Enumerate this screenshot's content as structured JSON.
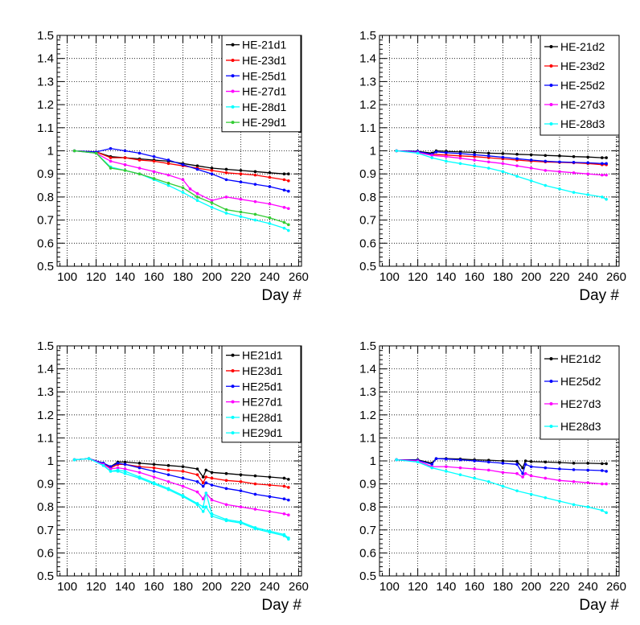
{
  "chart_data": [
    {
      "type": "line",
      "xlabel": "Day #",
      "ylabel": "",
      "xlim": [
        93,
        262
      ],
      "ylim": [
        0.5,
        1.5
      ],
      "xticks": [
        "100",
        "120",
        "140",
        "160",
        "180",
        "200",
        "220",
        "240",
        "260"
      ],
      "yticks": [
        "0.5",
        "0.6",
        "0.7",
        "0.8",
        "0.9",
        "1",
        "1.1",
        "1.2",
        "1.3",
        "1.4",
        "1.5"
      ],
      "grid": true,
      "legend_position": "top-right",
      "series": [
        {
          "name": "HE-21d1",
          "color": "#000000",
          "x": [
            105,
            120,
            130,
            140,
            150,
            160,
            170,
            180,
            190,
            200,
            210,
            220,
            230,
            240,
            250,
            253
          ],
          "y": [
            1.0,
            0.995,
            0.975,
            0.97,
            0.965,
            0.96,
            0.955,
            0.945,
            0.935,
            0.925,
            0.92,
            0.915,
            0.91,
            0.905,
            0.9,
            0.9
          ]
        },
        {
          "name": "HE-23d1",
          "color": "#ff0000",
          "x": [
            105,
            120,
            130,
            140,
            150,
            160,
            170,
            180,
            190,
            200,
            210,
            220,
            230,
            240,
            250,
            253
          ],
          "y": [
            1.0,
            0.995,
            0.97,
            0.97,
            0.96,
            0.955,
            0.945,
            0.935,
            0.925,
            0.915,
            0.905,
            0.9,
            0.895,
            0.885,
            0.875,
            0.87
          ]
        },
        {
          "name": "HE-25d1",
          "color": "#0000ff",
          "x": [
            105,
            120,
            130,
            140,
            150,
            160,
            170,
            180,
            190,
            200,
            210,
            220,
            230,
            240,
            250,
            253
          ],
          "y": [
            1.0,
            0.995,
            1.01,
            1.0,
            0.99,
            0.975,
            0.96,
            0.94,
            0.92,
            0.9,
            0.875,
            0.865,
            0.855,
            0.845,
            0.83,
            0.825
          ]
        },
        {
          "name": "HE-27d1",
          "color": "#ff00ff",
          "x": [
            105,
            120,
            130,
            140,
            150,
            160,
            170,
            180,
            185,
            190,
            200,
            210,
            220,
            230,
            240,
            250,
            253
          ],
          "y": [
            1.0,
            0.99,
            0.955,
            0.94,
            0.925,
            0.91,
            0.895,
            0.875,
            0.835,
            0.815,
            0.785,
            0.8,
            0.79,
            0.78,
            0.77,
            0.755,
            0.75
          ]
        },
        {
          "name": "HE-28d1",
          "color": "#00ffff",
          "x": [
            105,
            120,
            130,
            140,
            150,
            160,
            170,
            180,
            190,
            200,
            210,
            220,
            230,
            240,
            250,
            253
          ],
          "y": [
            1.0,
            0.99,
            0.93,
            0.915,
            0.9,
            0.875,
            0.85,
            0.82,
            0.785,
            0.755,
            0.73,
            0.715,
            0.7,
            0.685,
            0.665,
            0.655
          ]
        },
        {
          "name": "HE-29d1",
          "color": "#33cc33",
          "x": [
            105,
            120,
            130,
            140,
            150,
            160,
            170,
            180,
            190,
            200,
            210,
            220,
            230,
            240,
            250,
            253
          ],
          "y": [
            1.0,
            0.99,
            0.925,
            0.915,
            0.9,
            0.88,
            0.86,
            0.84,
            0.8,
            0.775,
            0.745,
            0.735,
            0.725,
            0.71,
            0.69,
            0.68
          ]
        }
      ]
    },
    {
      "type": "line",
      "xlabel": "Day #",
      "ylabel": "",
      "xlim": [
        93,
        262
      ],
      "ylim": [
        0.5,
        1.5
      ],
      "xticks": [
        "100",
        "120",
        "140",
        "160",
        "180",
        "200",
        "220",
        "240",
        "260"
      ],
      "yticks": [
        "0.5",
        "0.6",
        "0.7",
        "0.8",
        "0.9",
        "1",
        "1.1",
        "1.2",
        "1.3",
        "1.4",
        "1.5"
      ],
      "grid": true,
      "legend_position": "top-right",
      "series": [
        {
          "name": "HE-21d2",
          "color": "#000000",
          "x": [
            105,
            120,
            130,
            133,
            140,
            150,
            160,
            170,
            180,
            190,
            200,
            210,
            220,
            230,
            240,
            250,
            253
          ],
          "y": [
            1.0,
            0.998,
            0.99,
            1.0,
            0.998,
            0.995,
            0.993,
            0.99,
            0.988,
            0.985,
            0.983,
            0.98,
            0.978,
            0.975,
            0.973,
            0.97,
            0.97
          ]
        },
        {
          "name": "HE-23d2",
          "color": "#ff0000",
          "x": [
            105,
            120,
            130,
            140,
            150,
            160,
            170,
            180,
            190,
            200,
            210,
            220,
            230,
            240,
            250,
            253
          ],
          "y": [
            1.0,
            0.995,
            0.985,
            0.982,
            0.978,
            0.975,
            0.97,
            0.965,
            0.96,
            0.955,
            0.952,
            0.95,
            0.948,
            0.945,
            0.94,
            0.94
          ]
        },
        {
          "name": "HE-25d2",
          "color": "#0000ff",
          "x": [
            105,
            120,
            130,
            133,
            140,
            150,
            160,
            170,
            180,
            190,
            200,
            210,
            220,
            230,
            240,
            250,
            253
          ],
          "y": [
            1.0,
            0.997,
            0.985,
            0.995,
            0.992,
            0.988,
            0.983,
            0.978,
            0.972,
            0.966,
            0.96,
            0.955,
            0.952,
            0.95,
            0.948,
            0.945,
            0.945
          ]
        },
        {
          "name": "HE-27d3",
          "color": "#ff00ff",
          "x": [
            105,
            120,
            130,
            140,
            150,
            160,
            170,
            180,
            190,
            200,
            210,
            220,
            230,
            240,
            250,
            253
          ],
          "y": [
            1.0,
            0.993,
            0.98,
            0.975,
            0.968,
            0.96,
            0.952,
            0.945,
            0.935,
            0.925,
            0.915,
            0.91,
            0.905,
            0.9,
            0.895,
            0.895
          ]
        },
        {
          "name": "HE-28d3",
          "color": "#00ffff",
          "x": [
            105,
            120,
            130,
            140,
            150,
            160,
            170,
            180,
            190,
            200,
            210,
            220,
            230,
            240,
            250,
            253
          ],
          "y": [
            1.0,
            0.99,
            0.97,
            0.955,
            0.945,
            0.935,
            0.925,
            0.91,
            0.89,
            0.87,
            0.85,
            0.835,
            0.82,
            0.81,
            0.8,
            0.79
          ]
        }
      ]
    },
    {
      "type": "line",
      "xlabel": "Day #",
      "ylabel": "",
      "xlim": [
        93,
        262
      ],
      "ylim": [
        0.5,
        1.5
      ],
      "xticks": [
        "100",
        "120",
        "140",
        "160",
        "180",
        "200",
        "220",
        "240",
        "260"
      ],
      "yticks": [
        "0.5",
        "0.6",
        "0.7",
        "0.8",
        "0.9",
        "1",
        "1.1",
        "1.2",
        "1.3",
        "1.4",
        "1.5"
      ],
      "grid": true,
      "legend_position": "top-right",
      "series": [
        {
          "name": "HE21d1",
          "color": "#000000",
          "x": [
            105,
            115,
            125,
            130,
            135,
            140,
            150,
            160,
            170,
            180,
            190,
            194,
            196,
            200,
            210,
            220,
            230,
            240,
            250,
            253
          ],
          "y": [
            1.005,
            1.01,
            0.99,
            0.975,
            0.995,
            0.995,
            0.99,
            0.985,
            0.98,
            0.975,
            0.965,
            0.93,
            0.96,
            0.95,
            0.945,
            0.94,
            0.935,
            0.93,
            0.925,
            0.92
          ]
        },
        {
          "name": "HE23d1",
          "color": "#ff0000",
          "x": [
            105,
            115,
            125,
            130,
            135,
            140,
            150,
            160,
            170,
            180,
            190,
            194,
            196,
            200,
            210,
            220,
            230,
            240,
            250,
            253
          ],
          "y": [
            1.005,
            1.01,
            0.985,
            0.97,
            0.985,
            0.985,
            0.975,
            0.97,
            0.96,
            0.955,
            0.94,
            0.905,
            0.93,
            0.925,
            0.915,
            0.91,
            0.9,
            0.895,
            0.89,
            0.885
          ]
        },
        {
          "name": "HE25d1",
          "color": "#0000ff",
          "x": [
            105,
            115,
            125,
            130,
            135,
            140,
            150,
            160,
            170,
            180,
            190,
            194,
            196,
            200,
            210,
            220,
            230,
            240,
            250,
            253
          ],
          "y": [
            1.005,
            1.01,
            0.99,
            0.975,
            0.99,
            0.985,
            0.97,
            0.955,
            0.94,
            0.925,
            0.91,
            0.89,
            0.905,
            0.895,
            0.88,
            0.87,
            0.855,
            0.845,
            0.835,
            0.83
          ]
        },
        {
          "name": "HE27d1",
          "color": "#ff00ff",
          "x": [
            105,
            115,
            125,
            130,
            135,
            140,
            150,
            160,
            170,
            180,
            190,
            194,
            196,
            200,
            210,
            220,
            230,
            240,
            250,
            253
          ],
          "y": [
            1.005,
            1.01,
            0.985,
            0.965,
            0.97,
            0.965,
            0.95,
            0.93,
            0.91,
            0.89,
            0.865,
            0.835,
            0.86,
            0.83,
            0.81,
            0.8,
            0.79,
            0.78,
            0.77,
            0.765
          ]
        },
        {
          "name": "HE28d1",
          "color": "#00ffff",
          "x": [
            105,
            115,
            125,
            130,
            135,
            140,
            150,
            160,
            170,
            180,
            190,
            194,
            196,
            200,
            210,
            220,
            230,
            240,
            250,
            253
          ],
          "y": [
            1.005,
            1.01,
            0.98,
            0.955,
            0.955,
            0.945,
            0.925,
            0.9,
            0.875,
            0.845,
            0.81,
            0.78,
            0.8,
            0.76,
            0.74,
            0.73,
            0.705,
            0.69,
            0.675,
            0.66
          ]
        },
        {
          "name": "HE29d1",
          "color": "#00ffff",
          "x": [
            105,
            115,
            125,
            130,
            135,
            140,
            150,
            160,
            170,
            180,
            190,
            194,
            196,
            200,
            210,
            220,
            230,
            240,
            250,
            253
          ],
          "y": [
            1.005,
            1.01,
            0.98,
            0.955,
            0.96,
            0.955,
            0.93,
            0.905,
            0.88,
            0.85,
            0.815,
            0.8,
            0.86,
            0.77,
            0.745,
            0.735,
            0.71,
            0.695,
            0.68,
            0.665
          ]
        }
      ]
    },
    {
      "type": "line",
      "xlabel": "Day #",
      "ylabel": "",
      "xlim": [
        93,
        262
      ],
      "ylim": [
        0.5,
        1.5
      ],
      "xticks": [
        "100",
        "120",
        "140",
        "160",
        "180",
        "200",
        "220",
        "240",
        "260"
      ],
      "yticks": [
        "0.5",
        "0.6",
        "0.7",
        "0.8",
        "0.9",
        "1",
        "1.1",
        "1.2",
        "1.3",
        "1.4",
        "1.5"
      ],
      "grid": true,
      "legend_position": "top-right",
      "series": [
        {
          "name": "HE21d2",
          "color": "#000000",
          "x": [
            105,
            120,
            130,
            133,
            140,
            150,
            160,
            170,
            180,
            190,
            194,
            196,
            200,
            210,
            220,
            230,
            240,
            250,
            253
          ],
          "y": [
            1.005,
            1.005,
            0.99,
            1.01,
            1.01,
            1.008,
            1.005,
            1.003,
            1.0,
            0.998,
            0.97,
            1.0,
            0.997,
            0.995,
            0.993,
            0.99,
            0.99,
            0.988,
            0.988
          ]
        },
        {
          "name": "HE25d2",
          "color": "#0000ff",
          "x": [
            105,
            120,
            130,
            133,
            140,
            150,
            160,
            170,
            180,
            190,
            194,
            196,
            200,
            210,
            220,
            230,
            240,
            250,
            253
          ],
          "y": [
            1.005,
            1.003,
            0.985,
            1.01,
            1.008,
            1.005,
            1.0,
            0.995,
            0.99,
            0.985,
            0.945,
            0.985,
            0.975,
            0.97,
            0.965,
            0.962,
            0.96,
            0.958,
            0.955
          ]
        },
        {
          "name": "HE27d3",
          "color": "#ff00ff",
          "x": [
            105,
            120,
            130,
            140,
            150,
            160,
            170,
            180,
            190,
            194,
            196,
            200,
            210,
            220,
            230,
            240,
            250,
            253
          ],
          "y": [
            1.005,
            1.0,
            0.975,
            0.975,
            0.97,
            0.965,
            0.96,
            0.95,
            0.945,
            0.93,
            0.945,
            0.935,
            0.925,
            0.915,
            0.91,
            0.905,
            0.9,
            0.9
          ]
        },
        {
          "name": "HE28d3",
          "color": "#00ffff",
          "x": [
            105,
            120,
            130,
            140,
            150,
            160,
            170,
            180,
            190,
            200,
            210,
            220,
            230,
            240,
            250,
            253
          ],
          "y": [
            1.005,
            0.995,
            0.97,
            0.955,
            0.94,
            0.925,
            0.91,
            0.89,
            0.87,
            0.855,
            0.84,
            0.825,
            0.81,
            0.8,
            0.785,
            0.775
          ]
        }
      ]
    }
  ]
}
